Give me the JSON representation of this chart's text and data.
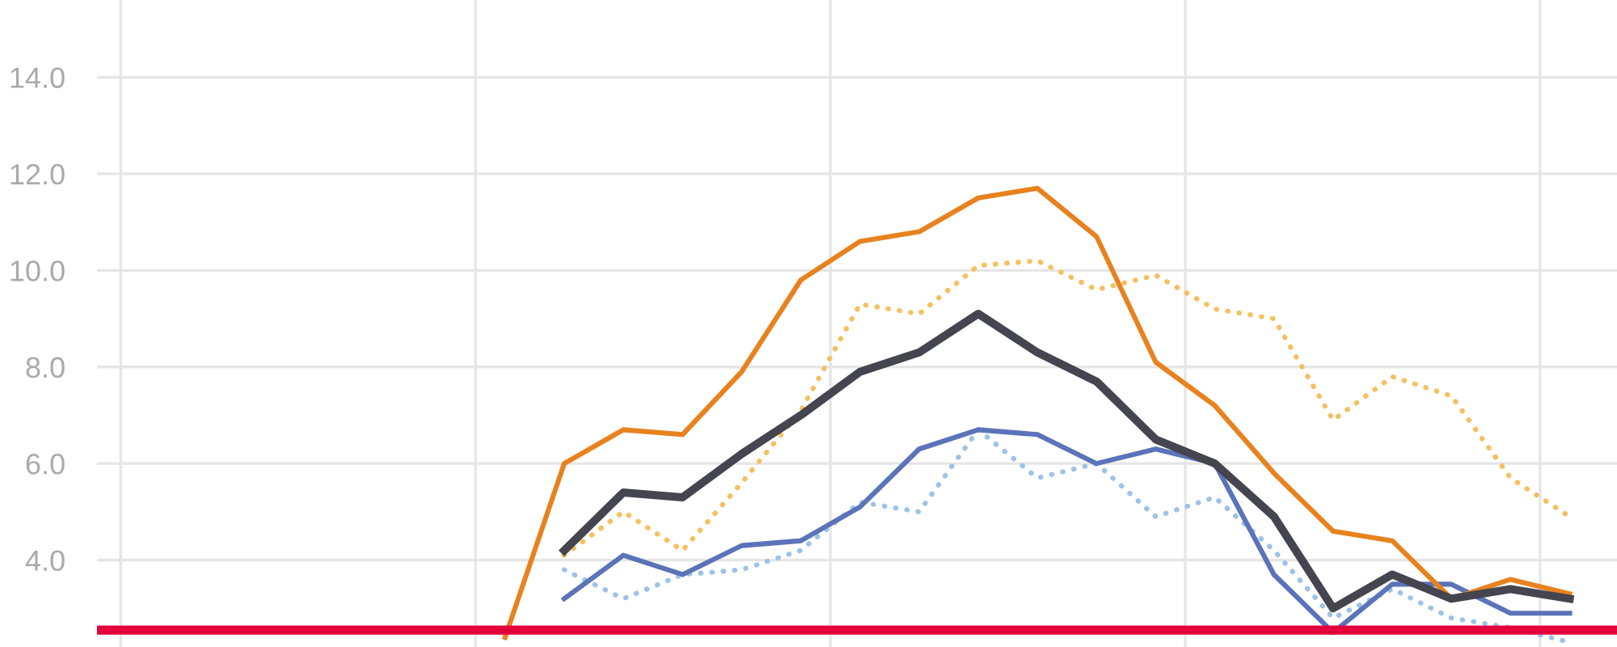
{
  "chart_data": {
    "type": "line",
    "categories": [
      null,
      null,
      null,
      null,
      null,
      null,
      null,
      null,
      null,
      null,
      null,
      null,
      null,
      null,
      null,
      null,
      null,
      null,
      null,
      null,
      null,
      null,
      null,
      null,
      null
    ],
    "series": [
      {
        "color": "#f5c060",
        "line_style": "dotted",
        "values": [
          null,
          null,
          null,
          null,
          null,
          null,
          null,
          4.1,
          5.0,
          4.2,
          5.6,
          7.1,
          9.3,
          9.1,
          10.1,
          10.2,
          9.6,
          9.9,
          9.2,
          9.0,
          6.9,
          7.8,
          7.4,
          5.7,
          4.9
        ]
      },
      {
        "color": "#9dc3e6",
        "line_style": "dotted",
        "values": [
          null,
          null,
          null,
          null,
          null,
          null,
          null,
          3.8,
          3.2,
          3.7,
          3.8,
          4.2,
          5.2,
          5.0,
          6.7,
          5.7,
          6.0,
          4.9,
          5.3,
          4.2,
          2.8,
          3.4,
          2.8,
          2.6,
          2.3
        ]
      },
      {
        "color": "#5b73b8",
        "line_style": "solid",
        "values": [
          null,
          null,
          null,
          null,
          null,
          null,
          null,
          3.2,
          4.1,
          3.7,
          4.3,
          4.4,
          5.1,
          6.3,
          6.7,
          6.6,
          6.0,
          6.3,
          6.0,
          3.7,
          2.5,
          3.5,
          3.5,
          2.9,
          2.9
        ]
      },
      {
        "color": "#e8821e",
        "line_style": "solid",
        "values": [
          null,
          null,
          null,
          null,
          null,
          null,
          2.4,
          6.0,
          6.7,
          6.6,
          7.9,
          9.8,
          10.6,
          10.8,
          11.5,
          11.7,
          10.7,
          8.1,
          7.2,
          5.8,
          4.6,
          4.4,
          3.2,
          3.6,
          3.3
        ]
      },
      {
        "color": "#45454f",
        "line_style": "solid",
        "values": [
          null,
          null,
          null,
          null,
          null,
          null,
          null,
          4.2,
          5.4,
          5.3,
          6.2,
          7.0,
          7.9,
          8.3,
          9.1,
          8.3,
          7.7,
          6.5,
          6.0,
          4.9,
          3.0,
          3.7,
          3.2,
          3.4,
          3.2
        ]
      }
    ],
    "ylim": [
      2.2,
      15.6
    ],
    "yticks": [
      {
        "value": 4,
        "label": "4.0"
      },
      {
        "value": 6,
        "label": "6.0"
      },
      {
        "value": 8,
        "label": "8.0"
      },
      {
        "value": 10,
        "label": "10.0"
      },
      {
        "value": 12,
        "label": "12.0"
      },
      {
        "value": 14,
        "label": "14.0"
      }
    ],
    "grid": true,
    "ref_lines": [
      {
        "axis": "y",
        "value": 2.55,
        "color": "#e4003b",
        "line_style": "solid"
      }
    ]
  }
}
